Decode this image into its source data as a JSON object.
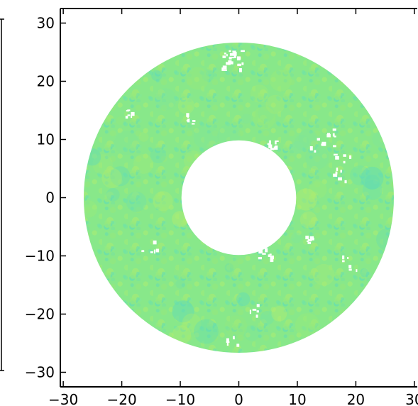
{
  "chart_data": {
    "type": "heatmap",
    "title": "",
    "xlabel": "",
    "ylabel": "",
    "xlim": [
      -30.5,
      30.5
    ],
    "ylim": [
      -32.5,
      32.5
    ],
    "x_ticks": [
      -30,
      -20,
      -10,
      0,
      10,
      20,
      30
    ],
    "y_ticks": [
      -30,
      -20,
      -10,
      0,
      10,
      20,
      30
    ],
    "x_tick_labels": [
      "−30",
      "−20",
      "−10",
      "0",
      "10",
      "20",
      "30"
    ],
    "y_tick_labels": [
      "−30",
      "−20",
      "−10",
      "0",
      "10",
      "20",
      "30"
    ],
    "annulus": {
      "center": [
        0,
        0
      ],
      "inner_radius": 9.8,
      "outer_radius": 26.5
    },
    "colors": {
      "base": "#88e88a",
      "variants": [
        "#7fe69a",
        "#96ea7c",
        "#6fe2a8",
        "#a6ec74",
        "#62dcb4",
        "#b8ee6a"
      ]
    },
    "grid": false,
    "legend": "none",
    "colorbar": "left-edge"
  }
}
